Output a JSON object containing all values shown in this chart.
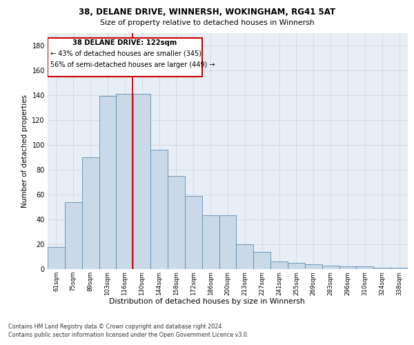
{
  "title_line1": "38, DELANE DRIVE, WINNERSH, WOKINGHAM, RG41 5AT",
  "title_line2": "Size of property relative to detached houses in Winnersh",
  "xlabel": "Distribution of detached houses by size in Winnersh",
  "ylabel": "Number of detached properties",
  "categories": [
    "61sqm",
    "75sqm",
    "89sqm",
    "103sqm",
    "116sqm",
    "130sqm",
    "144sqm",
    "158sqm",
    "172sqm",
    "186sqm",
    "200sqm",
    "213sqm",
    "227sqm",
    "241sqm",
    "255sqm",
    "269sqm",
    "283sqm",
    "296sqm",
    "310sqm",
    "324sqm",
    "338sqm"
  ],
  "values": [
    18,
    54,
    90,
    139,
    141,
    141,
    96,
    75,
    59,
    43,
    43,
    20,
    14,
    6,
    5,
    4,
    3,
    2,
    2,
    1,
    1
  ],
  "bar_color": "#c9d9e8",
  "bar_edge_color": "#5b8db0",
  "annotation_text_line1": "38 DELANE DRIVE: 122sqm",
  "annotation_text_line2": "← 43% of detached houses are smaller (345)",
  "annotation_text_line3": "56% of semi-detached houses are larger (449) →",
  "annotation_box_color": "#cc0000",
  "vline_color": "#cc0000",
  "ylim": [
    0,
    190
  ],
  "yticks": [
    0,
    20,
    40,
    60,
    80,
    100,
    120,
    140,
    160,
    180
  ],
  "grid_color": "#c8d4e0",
  "background_color": "#e8eef5",
  "footer_line1": "Contains HM Land Registry data © Crown copyright and database right 2024.",
  "footer_line2": "Contains public sector information licensed under the Open Government Licence v3.0."
}
